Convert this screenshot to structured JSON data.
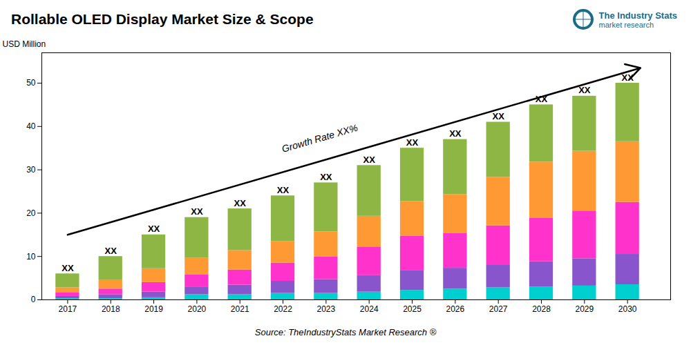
{
  "chart_data": {
    "type": "bar",
    "stacked": true,
    "title": "Rollable OLED Display Market Size & Scope",
    "ylabel": "USD Million",
    "source": "Source: TheIndustryStats Market Research ®",
    "logo_text": [
      "The Industry Stats",
      "market research"
    ],
    "logo_color": "#1a6b8a",
    "x": [
      2017,
      2018,
      2019,
      2020,
      2021,
      2022,
      2023,
      2024,
      2025,
      2026,
      2027,
      2028,
      2029,
      2030
    ],
    "series": [
      {
        "color": "#00CFCF",
        "values": [
          0.3,
          0.3,
          0.5,
          1.2,
          1.2,
          1.5,
          1.5,
          1.8,
          2.2,
          2.5,
          2.8,
          3.0,
          3.2,
          3.5
        ]
      },
      {
        "color": "#8855CC",
        "values": [
          0.5,
          0.9,
          1.3,
          1.8,
          2.2,
          2.8,
          3.2,
          3.8,
          4.5,
          4.8,
          5.3,
          5.8,
          6.3,
          7.0
        ]
      },
      {
        "color": "#FF33CC",
        "values": [
          0.8,
          1.3,
          2.2,
          2.8,
          3.5,
          4.2,
          5.2,
          6.5,
          8.0,
          8.0,
          9.0,
          10.0,
          11.0,
          12.0
        ]
      },
      {
        "color": "#FF9933",
        "values": [
          1.2,
          2.0,
          3.2,
          3.8,
          4.5,
          5.0,
          5.8,
          7.2,
          8.0,
          9.0,
          11.2,
          13.0,
          13.8,
          14.0
        ]
      },
      {
        "color": "#8DB645",
        "values": [
          3.2,
          5.5,
          7.8,
          9.4,
          9.6,
          10.5,
          11.3,
          11.7,
          12.3,
          12.7,
          12.7,
          13.2,
          12.7,
          13.5
        ]
      }
    ],
    "annotations": [
      {
        "text": "XX",
        "x": 2017,
        "y": 6
      },
      {
        "text": "XX",
        "x": 2018,
        "y": 10
      },
      {
        "text": "XX",
        "x": 2019,
        "y": 15
      },
      {
        "text": "XX",
        "x": 2020,
        "y": 19
      },
      {
        "text": "XX",
        "x": 2021,
        "y": 21
      },
      {
        "text": "XX",
        "x": 2022,
        "y": 24
      },
      {
        "text": "XX",
        "x": 2023,
        "y": 27
      },
      {
        "text": "XX",
        "x": 2024,
        "y": 31
      },
      {
        "text": "XX",
        "x": 2025,
        "y": 35
      },
      {
        "text": "XX",
        "x": 2026,
        "y": 37
      },
      {
        "text": "XX",
        "x": 2027,
        "y": 41
      },
      {
        "text": "XX",
        "x": 2028,
        "y": 45
      },
      {
        "text": "XX",
        "x": 2029,
        "y": 47
      },
      {
        "text": "XX",
        "x": 2030,
        "y": 50
      },
      {
        "text": "Growth Rate XX%",
        "x": 2022,
        "y": 34
      }
    ],
    "arrows": [
      {
        "x1": 2017,
        "y1": 15,
        "x2": 2030.3,
        "y2": 53.5
      }
    ],
    "xlim": [
      2016.4,
      2031
    ],
    "xticks": [
      2017,
      2018,
      2019,
      2020,
      2021,
      2022,
      2023,
      2024,
      2025,
      2026,
      2027,
      2028,
      2029,
      2030
    ],
    "ylim": [
      0,
      57
    ],
    "yticks": [
      0,
      10,
      20,
      30,
      40,
      50
    ],
    "grid": false
  }
}
